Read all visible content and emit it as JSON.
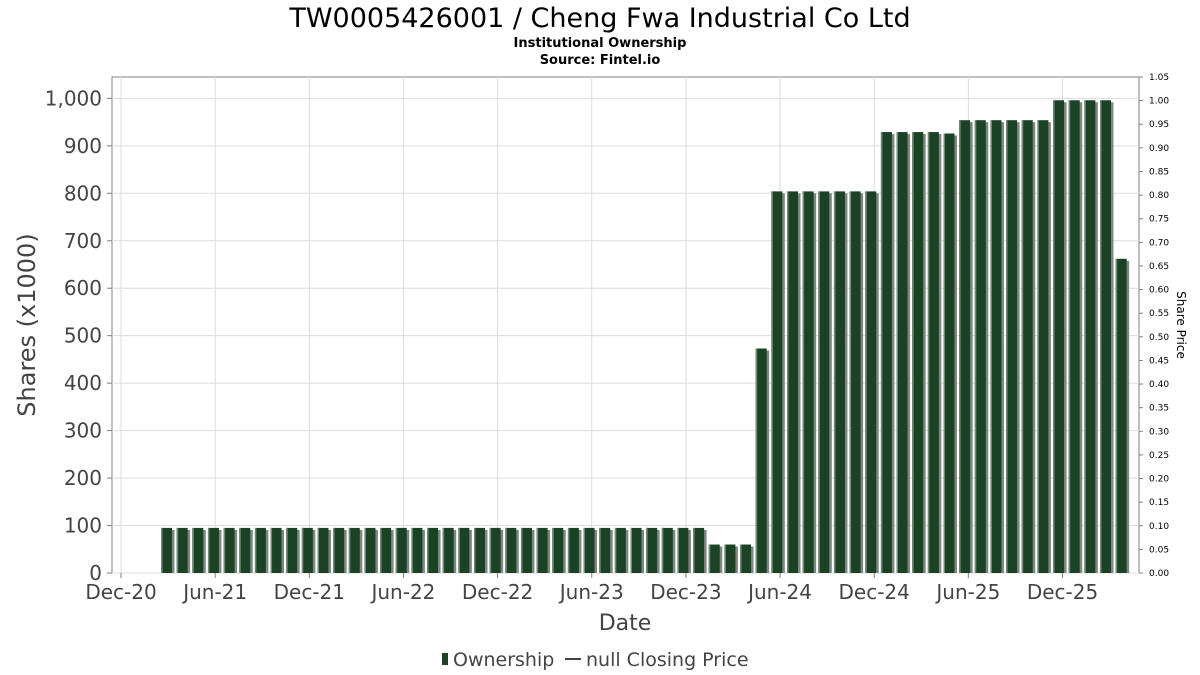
{
  "chart_data": {
    "type": "bar",
    "title": "TW0005426001 / Cheng Fwa Industrial Co Ltd",
    "subtitle": "Institutional Ownership",
    "source": "Source: Fintel.io",
    "xlabel": "Date",
    "ylabel": "Shares (x1000)",
    "y2label": "Share Price",
    "ylim": [
      0,
      1045
    ],
    "y2lim": [
      0,
      1.05
    ],
    "yticks": [
      "0",
      "100",
      "200",
      "300",
      "400",
      "500",
      "600",
      "700",
      "800",
      "900",
      "1,000"
    ],
    "y2ticks": [
      "0.00",
      "0.05",
      "0.10",
      "0.15",
      "0.20",
      "0.25",
      "0.30",
      "0.35",
      "0.40",
      "0.45",
      "0.50",
      "0.55",
      "0.60",
      "0.65",
      "0.70",
      "0.75",
      "0.80",
      "0.85",
      "0.90",
      "0.95",
      "1.00",
      "1.05"
    ],
    "xticks": [
      "Dec-20",
      "Jun-21",
      "Dec-21",
      "Jun-22",
      "Dec-22",
      "Jun-23",
      "Dec-23",
      "Jun-24",
      "Dec-24",
      "Jun-25",
      "Dec-25"
    ],
    "grid": true,
    "colors": {
      "bar": "#1c4226",
      "bar_shadow": "#7f8880",
      "grid": "#dcdcdc",
      "frame": "#808080"
    },
    "series": [
      {
        "name": "Ownership",
        "values": [
          95,
          95,
          95,
          95,
          95,
          95,
          95,
          95,
          95,
          95,
          95,
          95,
          95,
          95,
          95,
          95,
          95,
          95,
          95,
          95,
          95,
          95,
          95,
          95,
          95,
          95,
          95,
          95,
          95,
          95,
          95,
          95,
          95,
          95,
          95,
          60,
          60,
          60,
          473,
          804,
          804,
          804,
          804,
          804,
          804,
          804,
          929,
          929,
          929,
          929,
          926,
          954,
          954,
          954,
          954,
          954,
          954,
          996,
          996,
          996,
          996,
          662
        ]
      },
      {
        "name": "null Closing Price",
        "values": []
      }
    ],
    "legend": {
      "position": "bottom",
      "items": [
        "Ownership",
        "null Closing Price"
      ]
    }
  }
}
